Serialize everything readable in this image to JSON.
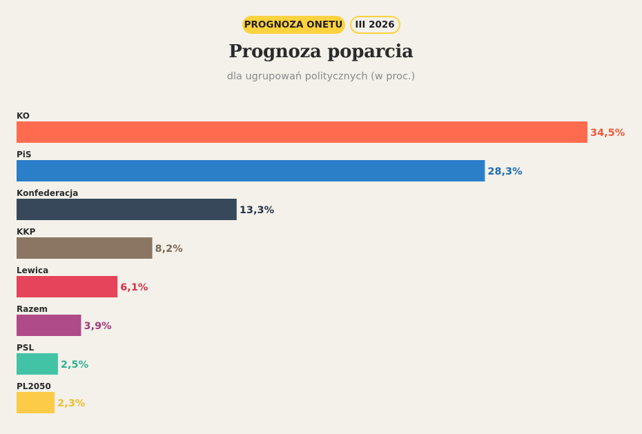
{
  "header": {
    "badge_primary": "PROGNOZA ONETU",
    "badge_secondary": "III 2026",
    "title": "Prognoza poparcia",
    "subtitle": "dla ugrupowań politycznych (w proc.)"
  },
  "chart_data": {
    "type": "bar",
    "orientation": "horizontal",
    "title": "Prognoza poparcia",
    "subtitle": "dla ugrupowań politycznych (w proc.)",
    "unit": "%",
    "categories": [
      "KO",
      "PiS",
      "Konfederacja",
      "KKP",
      "Lewica",
      "Razem",
      "PSL",
      "PL2050"
    ],
    "values": [
      34.5,
      28.3,
      13.3,
      8.2,
      6.1,
      3.9,
      2.5,
      2.3
    ],
    "value_labels": [
      "34,5%",
      "28,3%",
      "13,3%",
      "8,2%",
      "6,1%",
      "3,9%",
      "2,5%",
      "2,3%"
    ],
    "bar_colors": [
      "#ff6b4f",
      "#2b7fc8",
      "#36485a",
      "#8a7663",
      "#e5445a",
      "#b04b8a",
      "#43c3a6",
      "#fccb48"
    ],
    "label_colors": [
      "#f0573c",
      "#1f6cb0",
      "#26344a",
      "#7a6753",
      "#d6304a",
      "#9d3b7a",
      "#2fb193",
      "#f2be30"
    ],
    "xlim": [
      0,
      34.5
    ],
    "grid": false,
    "legend": "none"
  }
}
